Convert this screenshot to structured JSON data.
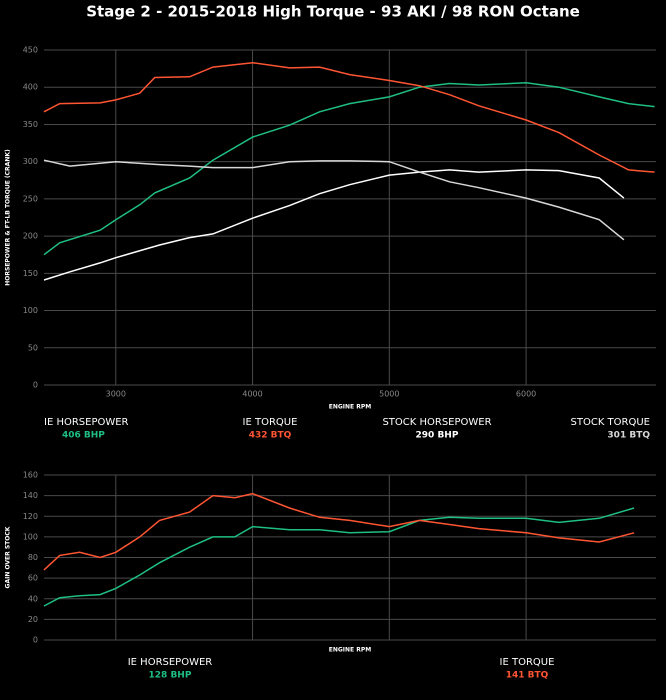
{
  "chart_data": [
    {
      "type": "line",
      "title": "Stage 2 - 2015-2018 High Torque - 93 AKI / 98 RON Octane",
      "x_label": "ENGINE RPM",
      "y_label": "HORSEPOWER & FT-LB TORQUE (CRANK)",
      "xlim": [
        2475,
        6950
      ],
      "xticks": [
        3000,
        4000,
        5000,
        6000
      ],
      "ylim": [
        0,
        450
      ],
      "yticks": [
        0,
        50,
        100,
        150,
        200,
        250,
        300,
        350,
        400,
        450
      ],
      "grid": true,
      "series": [
        {
          "name": "IE HORSEPOWER",
          "peak": "406 BHP",
          "color": "#1fbf83",
          "x": [
            2475,
            2590,
            2885,
            3000,
            3175,
            3285,
            3540,
            3710,
            4000,
            4270,
            4490,
            4710,
            5000,
            5220,
            5440,
            5655,
            6000,
            6240,
            6535,
            6750,
            6940
          ],
          "values": [
            175,
            191,
            208,
            222,
            242,
            258,
            278,
            302,
            333,
            349,
            367,
            378,
            387,
            400,
            405,
            403,
            406,
            400,
            387,
            378,
            374
          ]
        },
        {
          "name": "IE TORQUE",
          "peak": "432 BTQ",
          "color": "#ff5533",
          "x": [
            2475,
            2590,
            2885,
            3000,
            3175,
            3285,
            3540,
            3710,
            4000,
            4270,
            4490,
            4710,
            5000,
            5220,
            5440,
            5655,
            6000,
            6240,
            6535,
            6750,
            6940
          ],
          "values": [
            367,
            378,
            379,
            383,
            392,
            413,
            414,
            427,
            433,
            426,
            427,
            417,
            409,
            402,
            390,
            375,
            356,
            339,
            309,
            289,
            286
          ]
        },
        {
          "name": "STOCK HORSEPOWER",
          "peak": "290 BHP",
          "color": "#ffffff",
          "x": [
            2475,
            2665,
            2885,
            3000,
            3320,
            3540,
            3710,
            4000,
            4270,
            4490,
            4710,
            5000,
            5220,
            5440,
            5655,
            6000,
            6240,
            6535,
            6715
          ],
          "values": [
            141,
            152,
            164,
            171,
            188,
            198,
            203,
            224,
            241,
            257,
            269,
            282,
            286,
            289,
            286,
            289,
            288,
            278,
            251
          ]
        },
        {
          "name": "STOCK TORQUE",
          "peak": "301 BTQ",
          "color": "#d8d8d8",
          "x": [
            2475,
            2665,
            2885,
            3000,
            3320,
            3540,
            3710,
            4000,
            4270,
            4490,
            4710,
            5000,
            5220,
            5440,
            5655,
            6000,
            6240,
            6535,
            6715
          ],
          "values": [
            302,
            294,
            298,
            300,
            296,
            294,
            292,
            292,
            300,
            301,
            301,
            300,
            286,
            273,
            265,
            251,
            239,
            222,
            195
          ]
        }
      ]
    },
    {
      "type": "line",
      "x_label": "ENGINE RPM",
      "y_label": "GAIN OVER STOCK",
      "xlim": [
        2475,
        6950
      ],
      "ylim": [
        0,
        160
      ],
      "yticks": [
        0,
        20,
        40,
        60,
        80,
        100,
        120,
        140,
        160
      ],
      "grid": true,
      "series": [
        {
          "name": "IE HORSEPOWER",
          "peak": "128 BHP",
          "color": "#1fbf83",
          "x": [
            2475,
            2590,
            2735,
            2885,
            3000,
            3175,
            3320,
            3540,
            3710,
            3870,
            4000,
            4270,
            4490,
            4710,
            5000,
            5220,
            5440,
            5655,
            6000,
            6240,
            6535,
            6790
          ],
          "values": [
            33,
            41,
            43,
            44,
            50,
            63,
            75,
            90,
            100,
            100,
            110,
            107,
            107,
            104,
            105,
            116,
            119,
            118,
            118,
            114,
            118,
            128
          ]
        },
        {
          "name": "IE TORQUE",
          "peak": "141 BTQ",
          "color": "#ff5533",
          "x": [
            2475,
            2590,
            2735,
            2885,
            3000,
            3175,
            3320,
            3540,
            3710,
            3870,
            4000,
            4270,
            4490,
            4710,
            5000,
            5220,
            5440,
            5655,
            6000,
            6240,
            6535,
            6790
          ],
          "values": [
            68,
            82,
            85,
            80,
            85,
            100,
            116,
            124,
            140,
            138,
            142,
            128,
            119,
            116,
            110,
            116,
            112,
            108,
            104,
            99,
            95,
            104
          ]
        }
      ]
    }
  ]
}
